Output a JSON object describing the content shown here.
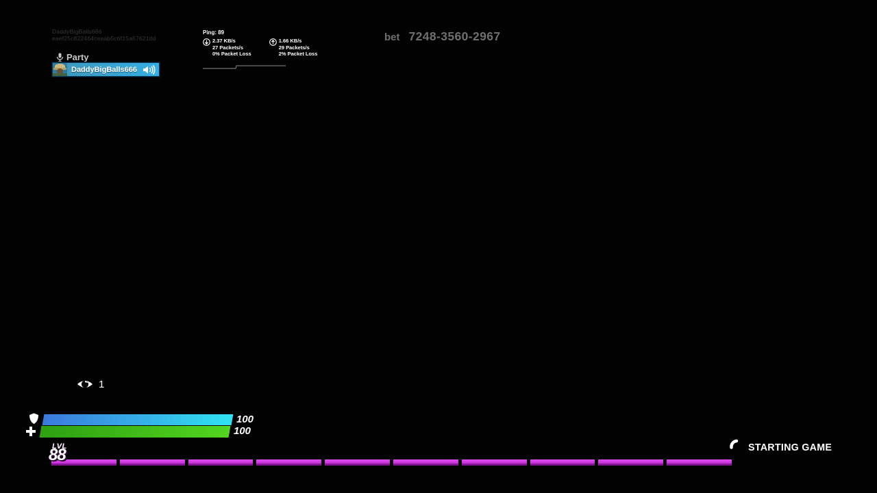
{
  "watermark": {
    "line1": "DaddyBigBalls666",
    "line2": "eaef25c822464ceaab5c6f15a67621dd"
  },
  "party": {
    "label": "Party",
    "player": {
      "name": "DaddyBigBalls666"
    },
    "bar_color_start": "#3e98bb",
    "bar_color_end": "#35aee4"
  },
  "network": {
    "ping_label": "Ping: 89",
    "download": {
      "rate": "2.37 KB/s",
      "packets": "27 Packets/s",
      "loss": "0% Packet Loss"
    },
    "upload": {
      "rate": "1.66 KB/s",
      "packets": "29 Packets/s",
      "loss": "2% Packet Loss"
    }
  },
  "island_code": {
    "prefix": "bet",
    "code": "7248-3560-2967"
  },
  "spectators": {
    "count": "1"
  },
  "vitals": {
    "shield": {
      "value": "100",
      "color_start": "#3b79dd",
      "color_end": "#2fe3f2"
    },
    "health": {
      "value": "100",
      "color_start": "#2e9f12",
      "color_end": "#52d61e"
    }
  },
  "level": {
    "label": "LVL",
    "value": "88"
  },
  "xp_bar": {
    "segments": 10,
    "color_top": "#e14df2",
    "color_bottom": "#b31fc4"
  },
  "status": {
    "text": "STARTING GAME"
  }
}
